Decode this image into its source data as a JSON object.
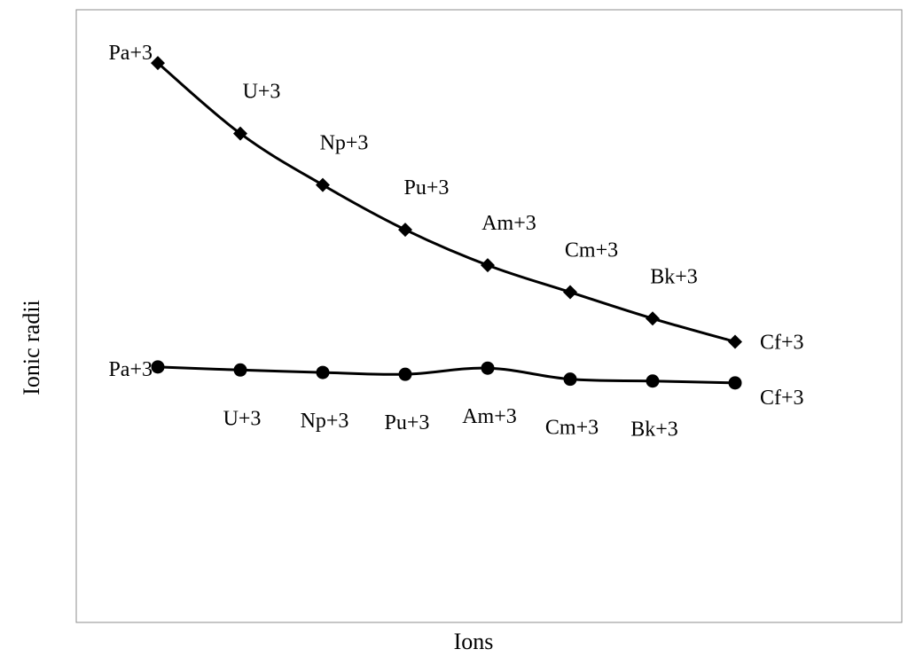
{
  "chart_data": {
    "type": "line",
    "xlabel": "Ions",
    "ylabel": "Ionic radii",
    "legend": "none",
    "grid": false,
    "ylim": [
      0,
      100
    ],
    "categories": [
      "Pa+3",
      "U+3",
      "Np+3",
      "Pu+3",
      "Am+3",
      "Cm+3",
      "Bk+3",
      "Cf+3"
    ],
    "series": [
      {
        "marker": "diamond",
        "values": [
          91.3,
          79.8,
          71.4,
          64.1,
          58.3,
          53.9,
          49.6,
          45.8
        ],
        "point_labels": [
          "Pa+3",
          "U+3",
          "Np+3",
          "Pu+3",
          "Am+3",
          "Cm+3",
          "Bk+3",
          "Cf+3"
        ],
        "label_position": "above"
      },
      {
        "marker": "circle",
        "values": [
          41.7,
          41.2,
          40.8,
          40.5,
          41.5,
          39.7,
          39.4,
          39.1
        ],
        "point_labels": [
          "Pa+3",
          "U+3",
          "Np+3",
          "Pu+3",
          "Am+3",
          "Cm+3",
          "Bk+3",
          "Cf+3"
        ],
        "label_position": "below"
      }
    ]
  }
}
